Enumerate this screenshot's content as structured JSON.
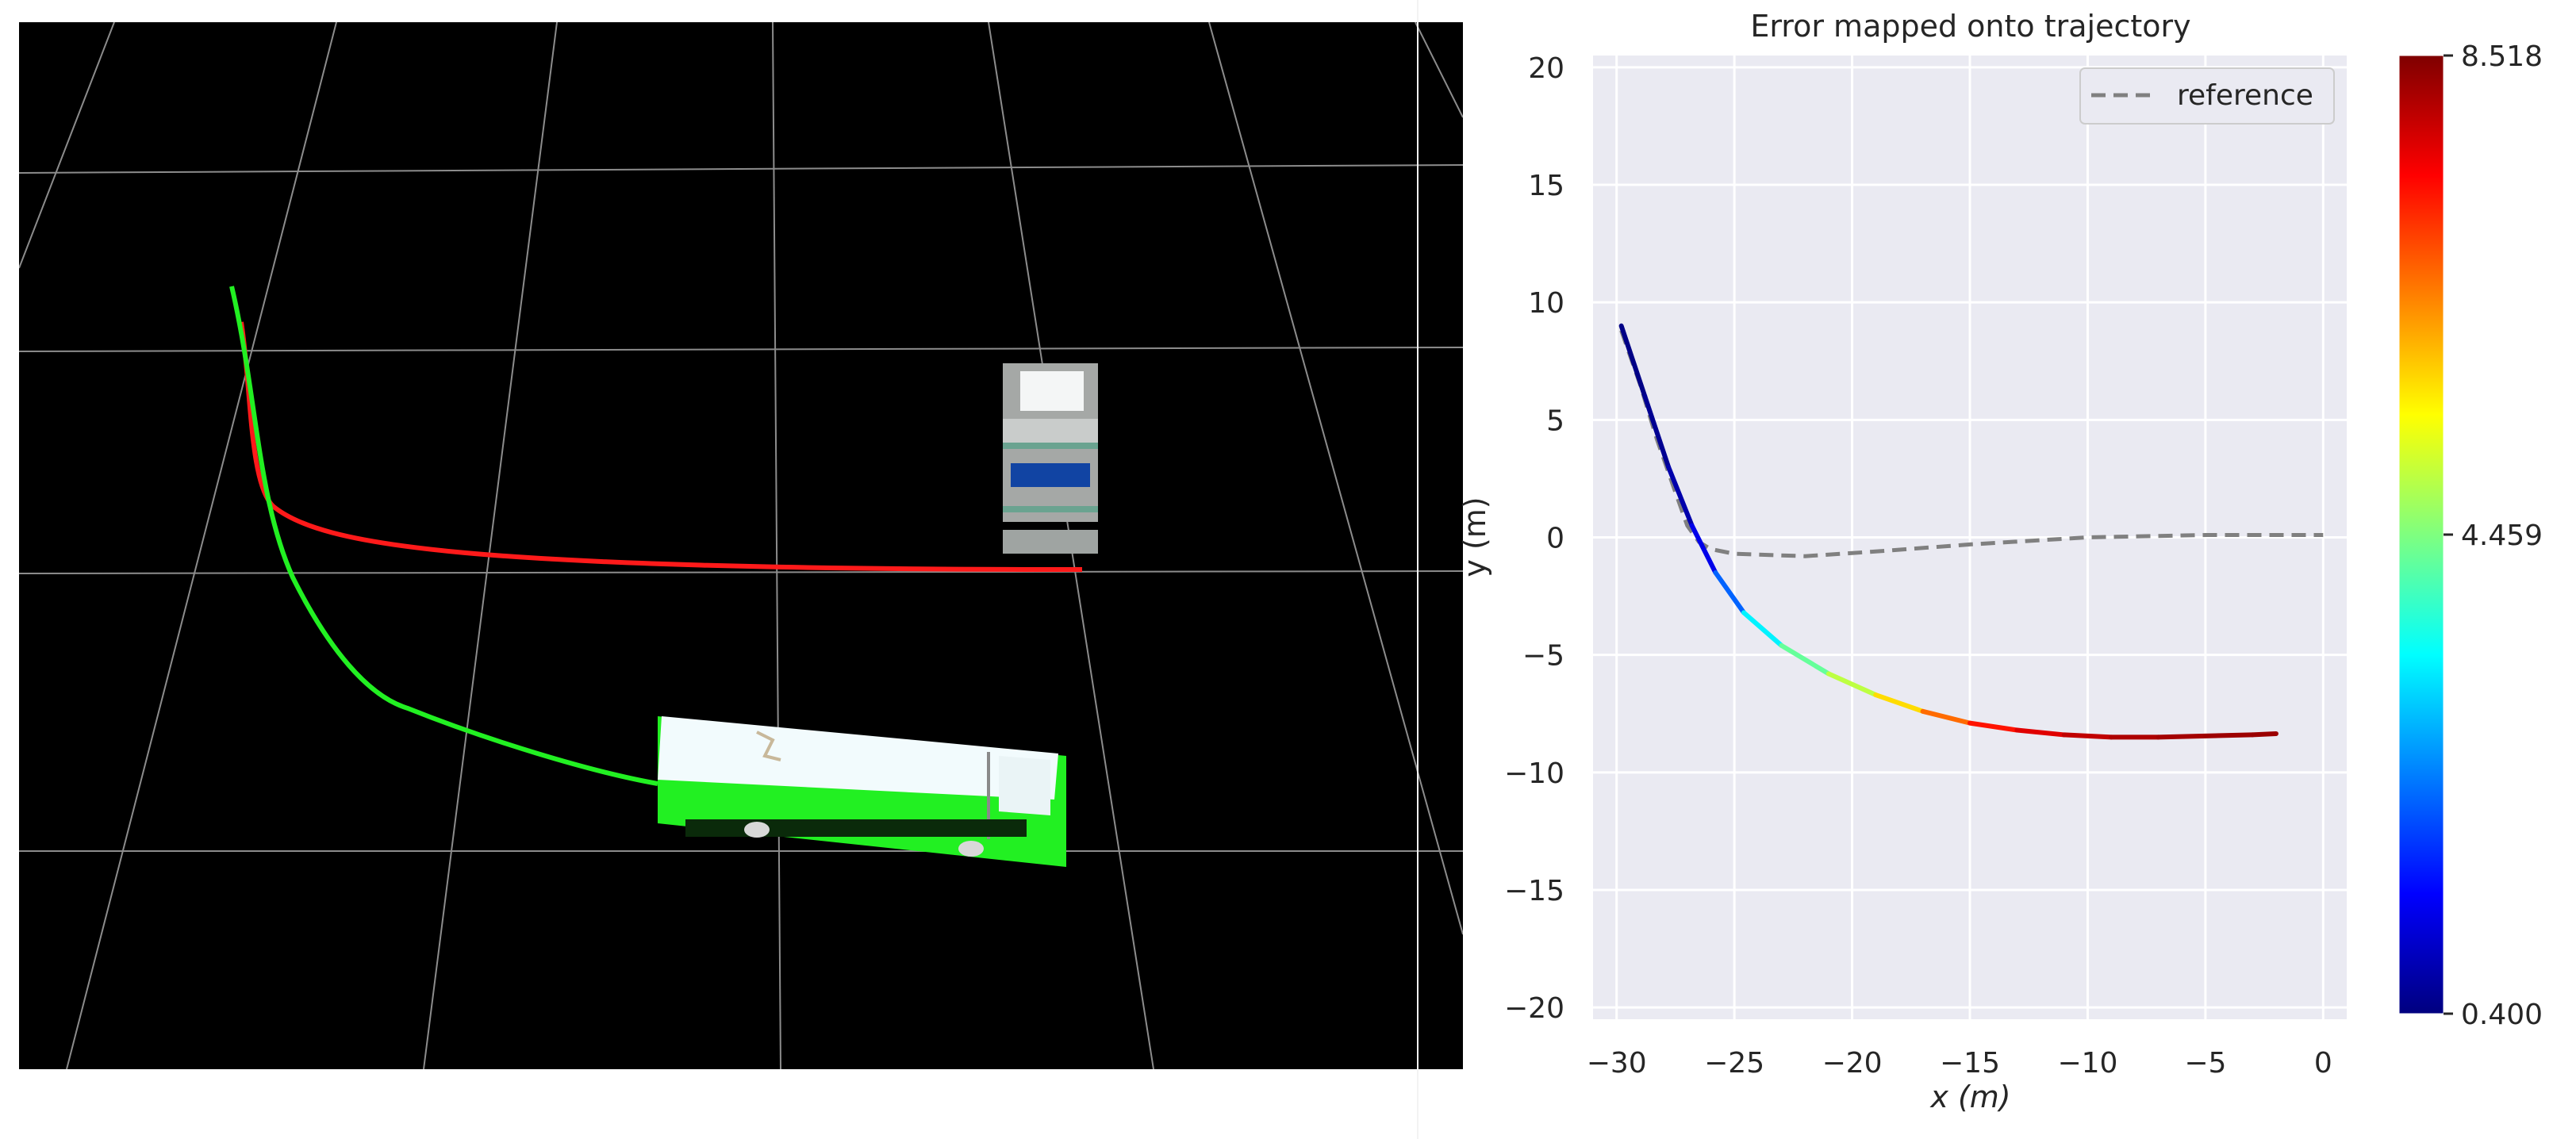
{
  "scene": {
    "background": "#000000",
    "grid_color": "#8c8c8c",
    "trajectories": [
      {
        "name": "red-trajectory",
        "color": "#ff1a1a"
      },
      {
        "name": "green-trajectory",
        "color": "#22f022"
      }
    ],
    "objects": [
      "bus",
      "building"
    ]
  },
  "chart_data": {
    "type": "line",
    "title": "Error mapped onto trajectory",
    "xlabel": "x (m)",
    "ylabel": "y (m)",
    "xlim": [
      -31,
      1
    ],
    "ylim": [
      -20.5,
      20.5
    ],
    "xticks": [
      -30,
      -25,
      -20,
      -15,
      -10,
      -5,
      0
    ],
    "yticks": [
      -20,
      -15,
      -10,
      -5,
      0,
      5,
      10,
      15,
      20
    ],
    "grid": true,
    "legend_position": "top-right",
    "colormap": "jet",
    "series": [
      {
        "name": "reference",
        "style": "dashed",
        "color": "#808080",
        "x": [
          -29.8,
          -29.0,
          -28.3,
          -27.6,
          -27.0,
          -26.5,
          -26.0,
          -25.0,
          -22.0,
          -19.0,
          -15.0,
          -10.0,
          -5.0,
          0.0
        ],
        "y": [
          8.8,
          6.5,
          4.2,
          2.2,
          0.5,
          -0.2,
          -0.5,
          -0.7,
          -0.8,
          -0.6,
          -0.3,
          0.0,
          0.1,
          0.1
        ]
      },
      {
        "style": "colormapped",
        "x": [
          -29.8,
          -28.8,
          -27.8,
          -26.8,
          -25.8,
          -24.6,
          -23.0,
          -21.0,
          -19.0,
          -17.0,
          -15.0,
          -13.0,
          -11.0,
          -9.0,
          -7.0,
          -5.0,
          -3.0,
          -2.0
        ],
        "y": [
          9.0,
          6.0,
          3.0,
          0.5,
          -1.5,
          -3.2,
          -4.6,
          -5.8,
          -6.7,
          -7.4,
          -7.9,
          -8.2,
          -8.4,
          -8.5,
          -8.5,
          -8.45,
          -8.4,
          -8.35
        ],
        "error": [
          0.4,
          0.5,
          0.6,
          0.9,
          1.6,
          2.8,
          3.9,
          4.6,
          5.3,
          6.2,
          7.1,
          7.6,
          7.9,
          8.1,
          8.2,
          8.25,
          8.3,
          8.3
        ]
      }
    ],
    "colorbar": {
      "min": 0.4,
      "max": 8.518,
      "tick_labels": [
        "8.518",
        "4.459",
        "0.400"
      ],
      "tick_values": [
        8.518,
        4.459,
        0.4
      ]
    }
  }
}
